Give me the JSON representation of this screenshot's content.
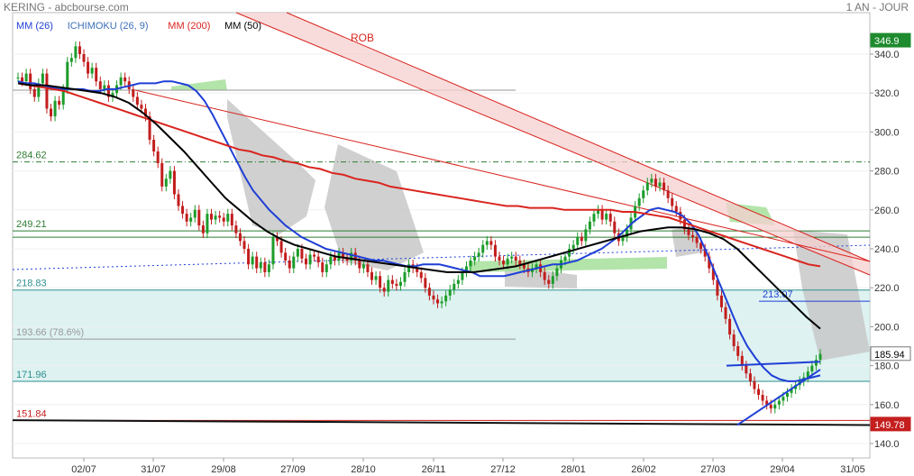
{
  "header": {
    "title": "KERING - abcbourse.com",
    "period": "1 AN - JOUR"
  },
  "legend": [
    {
      "label": "MM (26)",
      "color": "#1f3fd6"
    },
    {
      "label": "ICHIMOKU (26, 9)",
      "color": "#3c6fb6"
    },
    {
      "label": "MM (200)",
      "color": "#d9241e"
    },
    {
      "label": "MM (50)",
      "color": "#000000"
    }
  ],
  "chart_data": {
    "type": "candlestick",
    "ylim": [
      140,
      350
    ],
    "y_ticks": [
      140.0,
      160.0,
      180.0,
      200.0,
      220.0,
      240.0,
      260.0,
      280.0,
      300.0,
      320.0,
      340.0
    ],
    "x_ticks": [
      "02/07",
      "31/07",
      "29/08",
      "27/09",
      "28/10",
      "26/11",
      "27/12",
      "28/01",
      "26/02",
      "27/03",
      "29/04",
      "31/05"
    ],
    "price_tags": [
      {
        "value": 346.9,
        "label": "346.9",
        "bg": "#1e8b2e"
      },
      {
        "value": 185.94,
        "label": "185.94",
        "bg": "#ffffff"
      },
      {
        "value": 149.78,
        "label": "149.78",
        "bg": "#c41e1e"
      }
    ],
    "horizontal_levels": [
      {
        "label": "284.62",
        "value": 284.62,
        "color": "#2e7d32"
      },
      {
        "label": "249.21",
        "value": 249.21,
        "color": "#2e7d32"
      },
      {
        "label": "218.83",
        "value": 218.83,
        "color": "#2f8f8f"
      },
      {
        "label": "193.66  (78.6%)",
        "value": 193.66,
        "color": "#999999"
      },
      {
        "label": "171.96",
        "value": 171.96,
        "color": "#2f8f8f"
      },
      {
        "label": "151.84",
        "value": 151.84,
        "color": "#c41e1e"
      },
      {
        "label": "213.07",
        "value": 213.07,
        "color": "#1f3fd6"
      }
    ],
    "annotations": [
      {
        "text": "ROB",
        "color": "#d9241e"
      }
    ],
    "closes": [
      328,
      326,
      330,
      322,
      318,
      325,
      330,
      312,
      308,
      316,
      314,
      322,
      336,
      338,
      344,
      340,
      336,
      330,
      333,
      326,
      322,
      324,
      318,
      320,
      324,
      328,
      326,
      322,
      318,
      314,
      312,
      308,
      296,
      290,
      284,
      272,
      276,
      280,
      268,
      262,
      258,
      254,
      256,
      260,
      252,
      248,
      258,
      255,
      257,
      256,
      254,
      258,
      252,
      248,
      244,
      240,
      232,
      236,
      230,
      233,
      228,
      232,
      246,
      244,
      238,
      234,
      230,
      236,
      240,
      235,
      232,
      237,
      236,
      233,
      228,
      232,
      236,
      234,
      238,
      235,
      234,
      238,
      234,
      230,
      232,
      228,
      224,
      226,
      220,
      218,
      224,
      222,
      221,
      223,
      228,
      232,
      230,
      228,
      225,
      220,
      216,
      214,
      212,
      213,
      216,
      219,
      222,
      224,
      228,
      231,
      234,
      236,
      238,
      242,
      244,
      242,
      236,
      234,
      232,
      235,
      236,
      234,
      232,
      230,
      228,
      230,
      232,
      228,
      224,
      222,
      226,
      230,
      234,
      236,
      240,
      242,
      246,
      244,
      250,
      254,
      258,
      260,
      255,
      258,
      254,
      248,
      244,
      246,
      250,
      256,
      262,
      266,
      270,
      274,
      276,
      272,
      274,
      270,
      266,
      262,
      259,
      255,
      250,
      247,
      246,
      243,
      240,
      236,
      230,
      224,
      216,
      210,
      204,
      196,
      190,
      185,
      180,
      176,
      172,
      168,
      165,
      162,
      160,
      158,
      160,
      162,
      164,
      166,
      168,
      170,
      172,
      174,
      177,
      180,
      183,
      186
    ],
    "series": [
      {
        "name": "MM (26)",
        "color": "#1f3fd6",
        "values": [
          326,
          325,
          325,
          324,
          323,
          322,
          322,
          322,
          322,
          321,
          321,
          322,
          322,
          323,
          324,
          325,
          325,
          325,
          326,
          326,
          325,
          324,
          321,
          316,
          309,
          301,
          293,
          285,
          277,
          270,
          265,
          260,
          256,
          252,
          249,
          246,
          244,
          242,
          240,
          239,
          238,
          237,
          236,
          235,
          234,
          234,
          233,
          232,
          231,
          231,
          232,
          232,
          232,
          231,
          230,
          229,
          228,
          226,
          226,
          226,
          226,
          227,
          228,
          229,
          230,
          231,
          232,
          232,
          233,
          234,
          236,
          238,
          240,
          243,
          246,
          250,
          254,
          257,
          260,
          261,
          260,
          259,
          257,
          253,
          247,
          238,
          228,
          218,
          208,
          198,
          190,
          184,
          179,
          175,
          173,
          172,
          172,
          173,
          174,
          175
        ]
      },
      {
        "name": "MM (200)",
        "color": "#d9241e",
        "values": [
          325,
          324,
          323,
          322,
          321,
          319,
          317,
          315,
          313,
          311,
          309,
          307,
          305,
          303,
          301,
          299,
          297,
          295,
          293,
          291,
          290,
          288,
          287,
          285,
          284,
          282,
          281,
          279,
          278,
          276,
          275,
          274,
          272,
          271,
          270,
          269,
          268,
          267,
          266,
          265,
          264,
          263,
          262,
          262,
          261,
          261,
          261,
          260,
          260,
          260,
          260,
          260,
          259,
          259,
          258,
          257,
          256,
          254,
          252,
          250,
          248,
          246,
          244,
          242,
          240,
          238,
          236,
          234,
          232,
          231
        ]
      },
      {
        "name": "MM (50)",
        "color": "#000000",
        "values": [
          325,
          324,
          324,
          323,
          322,
          321,
          320,
          318,
          315,
          310,
          304,
          297,
          290,
          282,
          274,
          266,
          260,
          254,
          249,
          245,
          242,
          240,
          238,
          236,
          235,
          234,
          233,
          232,
          231,
          230,
          229,
          228,
          228,
          228,
          229,
          230,
          231,
          233,
          235,
          237,
          239,
          241,
          243,
          245,
          247,
          249,
          250,
          251,
          251,
          250,
          248,
          245,
          240,
          233,
          226,
          219,
          212,
          205,
          199
        ]
      }
    ]
  }
}
